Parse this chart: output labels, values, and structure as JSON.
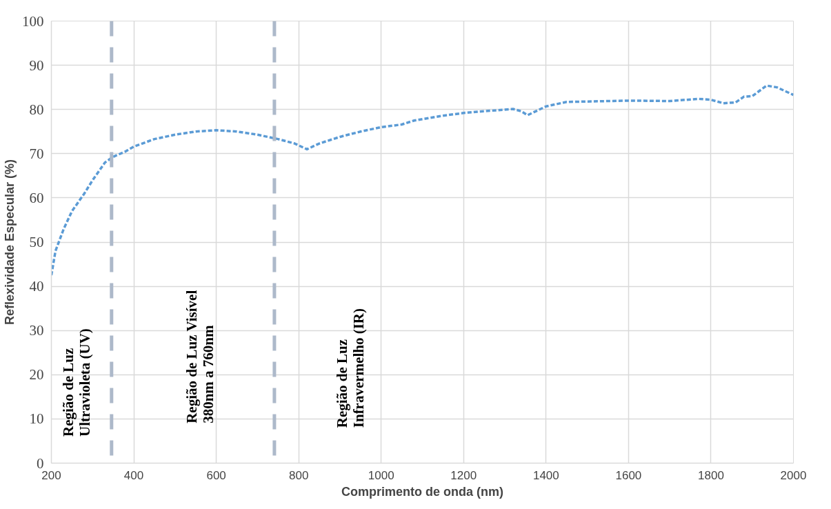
{
  "chart_data": {
    "type": "line",
    "xlabel": "Comprimento de onda (nm)",
    "ylabel": "Reflexividade Especular (%)",
    "x": [
      200,
      210,
      230,
      250,
      280,
      300,
      330,
      350,
      380,
      400,
      450,
      500,
      550,
      600,
      650,
      700,
      750,
      790,
      820,
      850,
      900,
      950,
      1000,
      1050,
      1080,
      1150,
      1200,
      1250,
      1320,
      1340,
      1355,
      1400,
      1450,
      1500,
      1600,
      1700,
      1770,
      1800,
      1830,
      1860,
      1880,
      1900,
      1935,
      1960,
      2000
    ],
    "series": [
      {
        "color": "#5b9bd5",
        "values": [
          42.5,
          48,
          53,
          57,
          61,
          64,
          68,
          69.3,
          70.5,
          71.6,
          73.3,
          74.3,
          75,
          75.3,
          75,
          74.3,
          73.3,
          72.3,
          71,
          72.3,
          73.8,
          75,
          76,
          76.6,
          77.5,
          78.6,
          79.2,
          79.6,
          80.1,
          79.6,
          78.7,
          80.7,
          81.7,
          81.8,
          82,
          81.9,
          82.4,
          82.2,
          81.4,
          81.6,
          82.9,
          83,
          85.4,
          85,
          83.3
        ]
      }
    ],
    "line_style": "dashed",
    "marker": "none",
    "xlim": [
      200,
      2000
    ],
    "xticks": [
      200,
      400,
      600,
      800,
      1000,
      1200,
      1400,
      1600,
      1800,
      2000
    ],
    "ylim": [
      0,
      100
    ],
    "yticks": [
      0,
      10,
      20,
      30,
      40,
      50,
      60,
      70,
      80,
      90,
      100
    ],
    "grid": true,
    "ref_lines": [
      {
        "axis": "x",
        "value": 346,
        "color": "#adb9ca",
        "line_style": "dashed"
      },
      {
        "axis": "x",
        "value": 741,
        "color": "#adb9ca",
        "line_style": "dashed"
      }
    ],
    "annotations": [
      "Região de Luz\nUltravioleta (UV)",
      "Região de Luz Visível\n380nm a 760nm",
      "Região de Luz\nInfravermelho (IR)"
    ]
  }
}
